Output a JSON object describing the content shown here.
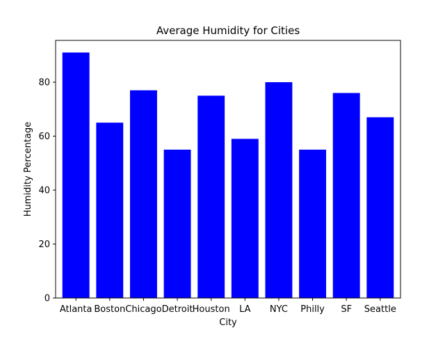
{
  "chart_data": {
    "type": "bar",
    "title": "Average Humidity for Cities",
    "xlabel": "City",
    "ylabel": "Humidity Percentage",
    "categories": [
      "Atlanta",
      "Boston",
      "Chicago",
      "Detroit",
      "Houston",
      "LA",
      "NYC",
      "Philly",
      "SF",
      "Seattle"
    ],
    "values": [
      91,
      65,
      77,
      55,
      75,
      59,
      80,
      55,
      76,
      67
    ],
    "ylim": [
      0,
      95.5
    ],
    "yticks": [
      0,
      20,
      40,
      60,
      80
    ],
    "grid": false,
    "bar_color": "#0000ff",
    "axis_color": "#000000"
  }
}
